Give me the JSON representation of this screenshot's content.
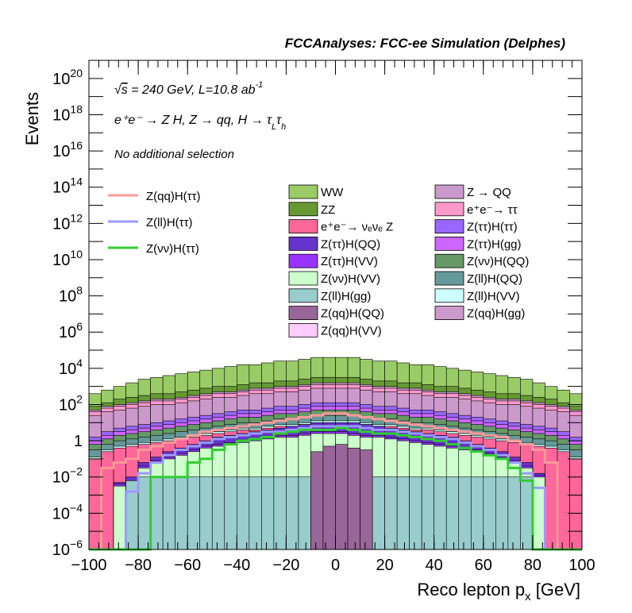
{
  "header": {
    "title": "FCCAnalyses: FCC-ee Simulation (Delphes)"
  },
  "annotations": {
    "energy_prefix": "√",
    "energy_s": "s",
    "energy_text": " = 240 GeV, L=10.8 ab",
    "energy_exp": "-1",
    "process_text": "e⁺e⁻ → Z H, Z → qq, H → τ",
    "process_sub1": "L",
    "process_tau2": "τ",
    "process_sub2": "h",
    "selection": "No additional selection"
  },
  "chart_data": {
    "type": "bar",
    "stacked": true,
    "log_y": true,
    "xlabel": "Reco lepton p",
    "xlabel_sub": "x",
    "xlabel_unit": " [GeV]",
    "ylabel": "Events",
    "xlim": [
      -100,
      100
    ],
    "ylim": [
      1e-06,
      1e+21
    ],
    "x_ticks": [
      -100,
      -80,
      -60,
      -40,
      -20,
      0,
      20,
      40,
      60,
      80,
      100
    ],
    "x_tick_labels": [
      "−100",
      "−80",
      "−60",
      "−40",
      "−20",
      "0",
      "20",
      "40",
      "60",
      "80",
      "100"
    ],
    "y_ticks": [
      {
        "exp": -6,
        "label_base": "10",
        "label_exp": "−6"
      },
      {
        "exp": -4,
        "label_base": "10",
        "label_exp": "−4"
      },
      {
        "exp": -2,
        "label_base": "10",
        "label_exp": "−2"
      },
      {
        "exp": 0,
        "label_base": "1",
        "label_exp": ""
      },
      {
        "exp": 2,
        "label_base": "10",
        "label_exp": "2"
      },
      {
        "exp": 4,
        "label_base": "10",
        "label_exp": "4"
      },
      {
        "exp": 6,
        "label_base": "10",
        "label_exp": "6"
      },
      {
        "exp": 8,
        "label_base": "10",
        "label_exp": "8"
      },
      {
        "exp": 10,
        "label_base": "10",
        "label_exp": "10"
      },
      {
        "exp": 12,
        "label_base": "10",
        "label_exp": "12"
      },
      {
        "exp": 14,
        "label_base": "10",
        "label_exp": "14"
      },
      {
        "exp": 16,
        "label_base": "10",
        "label_exp": "16"
      },
      {
        "exp": 18,
        "label_base": "10",
        "label_exp": "18"
      },
      {
        "exp": 20,
        "label_base": "10",
        "label_exp": "20"
      }
    ],
    "bin_edges_start": -100,
    "bin_width": 5,
    "stacked_series": [
      {
        "name": "Z(qq)H(VV)",
        "color": "#ffccff",
        "log10_values": [
          -6,
          -6,
          -6,
          -6,
          -6,
          -6,
          -6,
          -6,
          -6,
          -6,
          -6,
          -6,
          -6,
          -6,
          -6,
          -6,
          -6,
          -6,
          -6,
          -6,
          -6,
          -6,
          -6,
          -6,
          -6,
          -6,
          -6,
          -6,
          -6,
          -6,
          -6,
          -6,
          -6,
          -6,
          -6,
          -6,
          -6,
          -6,
          -6,
          -6
        ]
      },
      {
        "name": "Z(qq)H(QQ)",
        "color": "#996699",
        "log10_values": [
          -6,
          -6,
          -6,
          -6,
          -6,
          -6,
          -6,
          -6,
          -6,
          -6,
          -6,
          -6,
          -6,
          -6,
          -6,
          -6,
          -6,
          -6,
          -0.6,
          -0.3,
          -0.2,
          -0.4,
          -0.5,
          -6,
          -6,
          -6,
          -6,
          -6,
          -6,
          -6,
          -6,
          -6,
          -6,
          -6,
          -6,
          -6,
          -6,
          -6,
          -6,
          -6
        ]
      },
      {
        "name": "Z(ll)H(gg)",
        "color": "#99cccc",
        "log10_values": [
          -6,
          -6,
          -6,
          -2.2,
          -2.0,
          -2.0,
          -2.0,
          -2.0,
          -2.0,
          -2.0,
          -2.0,
          -2.0,
          -2.0,
          -2.0,
          -2.0,
          -2.0,
          -2.0,
          -2.0,
          -0.8,
          -0.7,
          -0.6,
          -0.8,
          -0.9,
          -2.0,
          -2.0,
          -2.0,
          -2.0,
          -2.0,
          -2.0,
          -2.0,
          -2.0,
          -2.0,
          -2.0,
          -2.0,
          -2.0,
          -2.0,
          -6,
          -6,
          -6,
          -6
        ]
      },
      {
        "name": "Z(νν)H(VV)",
        "color": "#ccffcc",
        "log10_values": [
          -6,
          -6,
          -2.5,
          -2.3,
          -1.5,
          -1.2,
          -1.0,
          -0.8,
          -0.6,
          -0.4,
          -0.3,
          -0.2,
          -0.1,
          0.0,
          0.1,
          0.2,
          0.2,
          0.3,
          0.4,
          0.4,
          0.4,
          0.3,
          0.2,
          0.2,
          0.1,
          0.0,
          -0.1,
          -0.2,
          -0.3,
          -0.4,
          -0.5,
          -0.6,
          -0.8,
          -1.0,
          -1.2,
          -1.5,
          -2.0,
          -6,
          -6,
          -6
        ]
      },
      {
        "name": "Z(ττ)H(VV)",
        "color": "#9933ff",
        "log10_values": [
          -6,
          -6,
          -2.4,
          -2.2,
          -1.4,
          -1.1,
          -0.9,
          -0.7,
          -0.5,
          -0.3,
          -0.2,
          -0.1,
          0.0,
          0.1,
          0.2,
          0.3,
          0.3,
          0.4,
          0.5,
          0.5,
          0.5,
          0.4,
          0.3,
          0.3,
          0.2,
          0.1,
          0.0,
          -0.1,
          -0.2,
          -0.3,
          -0.4,
          -0.5,
          -0.7,
          -0.9,
          -1.1,
          -1.4,
          -1.9,
          -6,
          -6,
          -6
        ]
      },
      {
        "name": "Z(ττ)H(QQ)",
        "color": "#6633cc",
        "log10_values": [
          -6,
          -6,
          -2.3,
          -2.0,
          -1.2,
          -0.9,
          -0.6,
          -0.4,
          -0.2,
          0.0,
          0.2,
          0.3,
          0.4,
          0.5,
          0.6,
          0.7,
          0.8,
          0.9,
          1.0,
          1.0,
          1.0,
          1.0,
          0.9,
          0.8,
          0.7,
          0.6,
          0.5,
          0.4,
          0.3,
          0.2,
          0.0,
          -0.2,
          -0.4,
          -0.6,
          -0.9,
          -1.2,
          -1.8,
          -6,
          -6,
          -6
        ]
      },
      {
        "name": "e⁺e⁻→ ν_e ν_e Z",
        "color": "#ff6699",
        "log10_values": [
          -1.0,
          -0.6,
          -0.4,
          -0.3,
          -0.2,
          -0.1,
          0.0,
          0.1,
          0.2,
          0.3,
          0.4,
          0.5,
          0.6,
          0.6,
          0.7,
          0.8,
          0.8,
          0.9,
          1.0,
          1.0,
          1.0,
          1.0,
          0.9,
          0.8,
          0.8,
          0.7,
          0.6,
          0.6,
          0.5,
          0.4,
          0.3,
          0.2,
          0.1,
          0.0,
          -0.1,
          -0.2,
          -0.3,
          -0.4,
          -0.6,
          -1.0
        ]
      },
      {
        "name": "Z(ll)H(VV)",
        "color": "#ccffff",
        "log10_values": [
          -0.9,
          -0.5,
          -0.3,
          -0.2,
          -0.1,
          0.0,
          0.1,
          0.2,
          0.3,
          0.4,
          0.5,
          0.6,
          0.7,
          0.7,
          0.8,
          0.9,
          0.9,
          1.0,
          1.1,
          1.1,
          1.1,
          1.1,
          1.0,
          0.9,
          0.9,
          0.8,
          0.7,
          0.7,
          0.6,
          0.5,
          0.4,
          0.3,
          0.2,
          0.1,
          0.0,
          -0.1,
          -0.2,
          -0.3,
          -0.5,
          -0.9
        ]
      },
      {
        "name": "Z(ll)H(QQ)",
        "color": "#669999",
        "log10_values": [
          -0.5,
          -0.2,
          0.0,
          0.1,
          0.2,
          0.3,
          0.4,
          0.5,
          0.6,
          0.7,
          0.8,
          0.9,
          1.0,
          1.0,
          1.1,
          1.2,
          1.2,
          1.3,
          1.4,
          1.4,
          1.4,
          1.4,
          1.3,
          1.2,
          1.2,
          1.1,
          1.0,
          1.0,
          0.9,
          0.8,
          0.7,
          0.6,
          0.5,
          0.4,
          0.3,
          0.2,
          0.1,
          0.0,
          -0.2,
          -0.5
        ]
      },
      {
        "name": "Z(νν)H(QQ)",
        "color": "#669966",
        "log10_values": [
          -0.2,
          0.1,
          0.3,
          0.4,
          0.5,
          0.6,
          0.7,
          0.8,
          0.9,
          1.0,
          1.1,
          1.2,
          1.3,
          1.3,
          1.4,
          1.5,
          1.5,
          1.6,
          1.7,
          1.7,
          1.7,
          1.7,
          1.6,
          1.5,
          1.5,
          1.4,
          1.3,
          1.3,
          1.2,
          1.1,
          1.0,
          0.9,
          0.8,
          0.7,
          0.6,
          0.5,
          0.4,
          0.3,
          0.1,
          -0.2
        ]
      },
      {
        "name": "Z(ττ)H(gg)",
        "color": "#cc66ff",
        "log10_values": [
          0.0,
          0.3,
          0.5,
          0.6,
          0.7,
          0.8,
          0.9,
          1.0,
          1.1,
          1.2,
          1.3,
          1.4,
          1.5,
          1.5,
          1.6,
          1.7,
          1.7,
          1.8,
          1.9,
          1.9,
          1.9,
          1.9,
          1.8,
          1.7,
          1.7,
          1.6,
          1.5,
          1.5,
          1.4,
          1.3,
          1.2,
          1.1,
          1.0,
          0.9,
          0.8,
          0.7,
          0.6,
          0.5,
          0.3,
          0.0
        ]
      },
      {
        "name": "Z(ττ)H(ττ)",
        "color": "#9966ff",
        "log10_values": [
          0.2,
          0.5,
          0.7,
          0.8,
          0.9,
          1.0,
          1.1,
          1.2,
          1.3,
          1.4,
          1.5,
          1.6,
          1.7,
          1.7,
          1.8,
          1.9,
          1.9,
          2.0,
          2.1,
          2.1,
          2.1,
          2.1,
          2.0,
          1.9,
          1.9,
          1.8,
          1.7,
          1.7,
          1.6,
          1.5,
          1.4,
          1.3,
          1.2,
          1.1,
          1.0,
          0.9,
          0.8,
          0.7,
          0.5,
          0.2
        ]
      },
      {
        "name": "Z(qq)H(gg)",
        "color": "#cc99cc",
        "log10_values": [
          1.4,
          1.6,
          1.7,
          1.8,
          1.9,
          2.0,
          2.0,
          2.1,
          2.2,
          2.3,
          2.4,
          2.4,
          2.5,
          2.6,
          2.6,
          2.7,
          2.7,
          2.8,
          2.9,
          2.9,
          2.9,
          2.9,
          2.8,
          2.7,
          2.7,
          2.6,
          2.6,
          2.5,
          2.4,
          2.4,
          2.3,
          2.2,
          2.1,
          2.0,
          2.0,
          1.9,
          1.8,
          1.7,
          1.6,
          1.4
        ]
      },
      {
        "name": "e⁺e⁻→ ττ",
        "color": "#ff99cc",
        "log10_values": [
          1.6,
          1.8,
          1.9,
          2.0,
          2.1,
          2.2,
          2.2,
          2.3,
          2.4,
          2.5,
          2.6,
          2.6,
          2.7,
          2.8,
          2.8,
          2.9,
          2.9,
          3.0,
          3.1,
          3.1,
          3.1,
          3.1,
          3.0,
          2.9,
          2.9,
          2.8,
          2.8,
          2.7,
          2.6,
          2.6,
          2.5,
          2.4,
          2.3,
          2.2,
          2.2,
          2.1,
          2.0,
          1.9,
          1.8,
          1.6
        ]
      },
      {
        "name": "Z → QQ",
        "color": "#cc99cc",
        "log10_values": [
          1.7,
          1.9,
          2.0,
          2.1,
          2.2,
          2.3,
          2.3,
          2.4,
          2.5,
          2.6,
          2.7,
          2.7,
          2.8,
          2.9,
          2.9,
          3.0,
          3.0,
          3.1,
          3.2,
          3.2,
          3.2,
          3.2,
          3.1,
          3.0,
          3.0,
          2.9,
          2.9,
          2.8,
          2.7,
          2.7,
          2.6,
          2.5,
          2.4,
          2.3,
          2.3,
          2.2,
          2.1,
          2.0,
          1.9,
          1.7
        ]
      },
      {
        "name": "ZZ",
        "color": "#669933",
        "log10_values": [
          1.9,
          2.1,
          2.3,
          2.4,
          2.5,
          2.6,
          2.6,
          2.7,
          2.8,
          2.9,
          3.0,
          3.0,
          3.1,
          3.2,
          3.2,
          3.3,
          3.3,
          3.4,
          3.5,
          3.5,
          3.5,
          3.5,
          3.4,
          3.3,
          3.3,
          3.2,
          3.2,
          3.1,
          3.0,
          3.0,
          2.9,
          2.8,
          2.7,
          2.6,
          2.6,
          2.5,
          2.4,
          2.3,
          2.1,
          1.9
        ]
      },
      {
        "name": "WW",
        "color": "#99cc66",
        "log10_values": [
          2.6,
          2.8,
          3.0,
          3.2,
          3.4,
          3.5,
          3.6,
          3.7,
          3.8,
          3.9,
          4.0,
          4.1,
          4.2,
          4.2,
          4.3,
          4.4,
          4.4,
          4.5,
          4.6,
          4.6,
          4.6,
          4.6,
          4.5,
          4.4,
          4.4,
          4.3,
          4.2,
          4.2,
          4.1,
          4.0,
          3.9,
          3.8,
          3.7,
          3.6,
          3.5,
          3.4,
          3.2,
          3.0,
          2.8,
          2.6
        ]
      }
    ],
    "line_series": [
      {
        "name": "Z(qq)H(ττ)",
        "color": "#ff9999",
        "log10_values": [
          -6,
          -1.5,
          -1.2,
          -1.0,
          -0.5,
          -0.3,
          -0.1,
          0.1,
          0.3,
          0.5,
          0.6,
          0.7,
          0.8,
          0.9,
          1.0,
          1.1,
          1.2,
          1.3,
          1.4,
          1.5,
          1.5,
          1.4,
          1.3,
          1.2,
          1.1,
          1.0,
          0.9,
          0.8,
          0.7,
          0.6,
          0.5,
          0.4,
          0.3,
          0.2,
          0.0,
          -0.2,
          -0.5,
          -1.2,
          -6,
          -6
        ]
      },
      {
        "name": "Z(ll)H(ττ)",
        "color": "#9999ff",
        "log10_values": [
          -6,
          -6,
          -6,
          -2.8,
          -1.8,
          -1.2,
          -0.8,
          -0.5,
          -0.3,
          -0.1,
          0.1,
          0.2,
          0.3,
          0.4,
          0.5,
          0.5,
          0.6,
          0.7,
          0.8,
          0.8,
          0.8,
          0.8,
          0.7,
          0.6,
          0.6,
          0.5,
          0.4,
          0.3,
          0.2,
          0.1,
          -0.1,
          -0.3,
          -0.5,
          -0.8,
          -1.2,
          -1.8,
          -2.6,
          -6,
          -6,
          -6
        ]
      },
      {
        "name": "Z(νν)H(ττ)",
        "color": "#33cc33",
        "log10_values": [
          -6,
          -6,
          -6,
          -6,
          -6,
          -2.0,
          -2.0,
          -2.0,
          -1.2,
          -1.0,
          -0.5,
          -0.2,
          0.0,
          0.1,
          0.2,
          0.4,
          0.5,
          0.6,
          0.6,
          0.6,
          0.7,
          0.6,
          0.5,
          0.4,
          0.4,
          0.3,
          0.2,
          0.1,
          0.0,
          -0.2,
          -0.4,
          -0.6,
          -0.8,
          -1.0,
          -1.5,
          -2.2,
          -6,
          -6,
          -6,
          -6
        ]
      }
    ],
    "legend_lines": [
      "Z(qq)H(ττ)",
      "Z(ll)H(ττ)",
      "Z(νν)H(ττ)"
    ],
    "legend_col1": [
      {
        "label": "WW",
        "color": "#99cc66"
      },
      {
        "label": "ZZ",
        "color": "#669933"
      },
      {
        "label": "e⁺e⁻→ νₑνₑ Z",
        "color": "#ff6699"
      },
      {
        "label": "Z(ττ)H(QQ)",
        "color": "#6633cc"
      },
      {
        "label": "Z(ττ)H(VV)",
        "color": "#9933ff"
      },
      {
        "label": "Z(νν)H(VV)",
        "color": "#ccffcc"
      },
      {
        "label": "Z(ll)H(gg)",
        "color": "#99cccc"
      },
      {
        "label": "Z(qq)H(QQ)",
        "color": "#996699"
      },
      {
        "label": "Z(qq)H(VV)",
        "color": "#ffccff"
      }
    ],
    "legend_col2": [
      {
        "label": "Z → QQ",
        "color": "#cc99cc"
      },
      {
        "label": "e⁺e⁻→ ττ",
        "color": "#ff99cc"
      },
      {
        "label": "Z(ττ)H(ττ)",
        "color": "#9966ff"
      },
      {
        "label": "Z(ττ)H(gg)",
        "color": "#cc66ff"
      },
      {
        "label": "Z(νν)H(QQ)",
        "color": "#669966"
      },
      {
        "label": "Z(ll)H(QQ)",
        "color": "#669999"
      },
      {
        "label": "Z(ll)H(VV)",
        "color": "#ccffff"
      },
      {
        "label": "Z(qq)H(gg)",
        "color": "#cc99cc"
      }
    ]
  }
}
